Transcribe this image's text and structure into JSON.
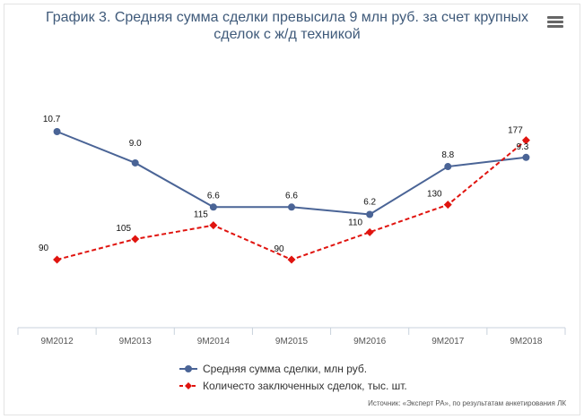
{
  "title": "График 3. Средняя сумма сделки превысила 9 млн руб. за счет крупных сделок с ж/д техникой",
  "menu_icon": "hamburger-menu-icon",
  "source": "Источник: «Эксперт РА», по результатам анкетирования ЛК",
  "chart_data": {
    "type": "line",
    "categories": [
      "9М2012",
      "9М2013",
      "9М2014",
      "9М2015",
      "9М2016",
      "9М2017",
      "9М2018"
    ],
    "series": [
      {
        "name": "Средняя сумма сделки, млн руб.",
        "values": [
          10.7,
          9.0,
          6.6,
          6.6,
          6.2,
          8.8,
          9.3
        ],
        "labels": [
          "10.7",
          "9.0",
          "6.6",
          "6.6",
          "6.2",
          "8.8",
          "9.3"
        ],
        "color": "#4a6496",
        "style": "solid",
        "marker": "circle"
      },
      {
        "name": "Количесто заключенных сделок, тыс. шт.",
        "values": [
          90,
          105,
          115,
          90,
          110,
          130,
          177
        ],
        "labels": [
          "90",
          "105",
          "115",
          "90",
          "110",
          "130",
          "177"
        ],
        "color": "#e0140f",
        "style": "dashed",
        "marker": "diamond"
      }
    ],
    "grid": false,
    "legend_position": "bottom"
  }
}
